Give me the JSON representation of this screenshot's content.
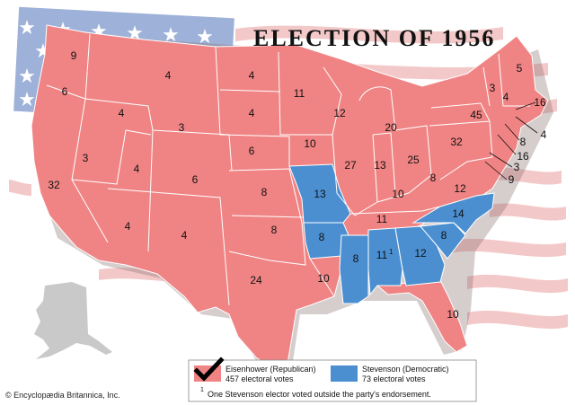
{
  "title": "ELECTION OF 1956",
  "colors": {
    "republican": "#f08484",
    "democratic": "#4b8fd1",
    "flag_stripe": "#f3c8c8",
    "flag_union": "#9eb1d8",
    "alaska": "#c9c9c9",
    "state_border": "#ffffff"
  },
  "legend": {
    "republican_name": "Eisenhower (Republican)",
    "republican_votes": "457 electoral votes",
    "democratic_name": "Stevenson (Democratic)",
    "democratic_votes": "73 electoral votes",
    "footnote_mark": "1",
    "footnote": "One Stevenson elector voted outside the party's endorsement."
  },
  "credit": "© Encyclopædia Britannica, Inc.",
  "electoral_votes": [
    {
      "state": "WA",
      "votes": "9",
      "party": "R"
    },
    {
      "state": "OR",
      "votes": "6",
      "party": "R"
    },
    {
      "state": "CA",
      "votes": "32",
      "party": "R"
    },
    {
      "state": "NV",
      "votes": "3",
      "party": "R"
    },
    {
      "state": "ID",
      "votes": "4",
      "party": "R"
    },
    {
      "state": "MT",
      "votes": "4",
      "party": "R"
    },
    {
      "state": "WY",
      "votes": "3",
      "party": "R"
    },
    {
      "state": "UT",
      "votes": "4",
      "party": "R"
    },
    {
      "state": "CO",
      "votes": "6",
      "party": "R"
    },
    {
      "state": "AZ",
      "votes": "4",
      "party": "R"
    },
    {
      "state": "NM",
      "votes": "4",
      "party": "R"
    },
    {
      "state": "ND",
      "votes": "4",
      "party": "R"
    },
    {
      "state": "SD",
      "votes": "4",
      "party": "R"
    },
    {
      "state": "NE",
      "votes": "6",
      "party": "R"
    },
    {
      "state": "KS",
      "votes": "8",
      "party": "R"
    },
    {
      "state": "OK",
      "votes": "8",
      "party": "R"
    },
    {
      "state": "TX",
      "votes": "24",
      "party": "R"
    },
    {
      "state": "MN",
      "votes": "11",
      "party": "R"
    },
    {
      "state": "IA",
      "votes": "10",
      "party": "R"
    },
    {
      "state": "MO",
      "votes": "13",
      "party": "D"
    },
    {
      "state": "AR",
      "votes": "8",
      "party": "D"
    },
    {
      "state": "LA",
      "votes": "10",
      "party": "R"
    },
    {
      "state": "WI",
      "votes": "12",
      "party": "R"
    },
    {
      "state": "IL",
      "votes": "27",
      "party": "R"
    },
    {
      "state": "MI",
      "votes": "20",
      "party": "R"
    },
    {
      "state": "IN",
      "votes": "13",
      "party": "R"
    },
    {
      "state": "OH",
      "votes": "25",
      "party": "R"
    },
    {
      "state": "KY",
      "votes": "10",
      "party": "R"
    },
    {
      "state": "TN",
      "votes": "11",
      "party": "R"
    },
    {
      "state": "MS",
      "votes": "8",
      "party": "D"
    },
    {
      "state": "AL",
      "votes": "11",
      "party": "D"
    },
    {
      "state": "GA",
      "votes": "12",
      "party": "D"
    },
    {
      "state": "FL",
      "votes": "10",
      "party": "R"
    },
    {
      "state": "SC",
      "votes": "8",
      "party": "D"
    },
    {
      "state": "NC",
      "votes": "14",
      "party": "D"
    },
    {
      "state": "VA",
      "votes": "12",
      "party": "R"
    },
    {
      "state": "WV",
      "votes": "8",
      "party": "R"
    },
    {
      "state": "PA",
      "votes": "32",
      "party": "R"
    },
    {
      "state": "NY",
      "votes": "45",
      "party": "R"
    },
    {
      "state": "VT",
      "votes": "3",
      "party": "R"
    },
    {
      "state": "NH",
      "votes": "4",
      "party": "R"
    },
    {
      "state": "ME",
      "votes": "5",
      "party": "R"
    },
    {
      "state": "MA",
      "votes": "16",
      "party": "R"
    },
    {
      "state": "RI",
      "votes": "4",
      "party": "R"
    },
    {
      "state": "CT",
      "votes": "8",
      "party": "R"
    },
    {
      "state": "NJ",
      "votes": "16",
      "party": "R"
    },
    {
      "state": "DE",
      "votes": "3",
      "party": "R"
    },
    {
      "state": "MD",
      "votes": "9",
      "party": "R"
    }
  ]
}
